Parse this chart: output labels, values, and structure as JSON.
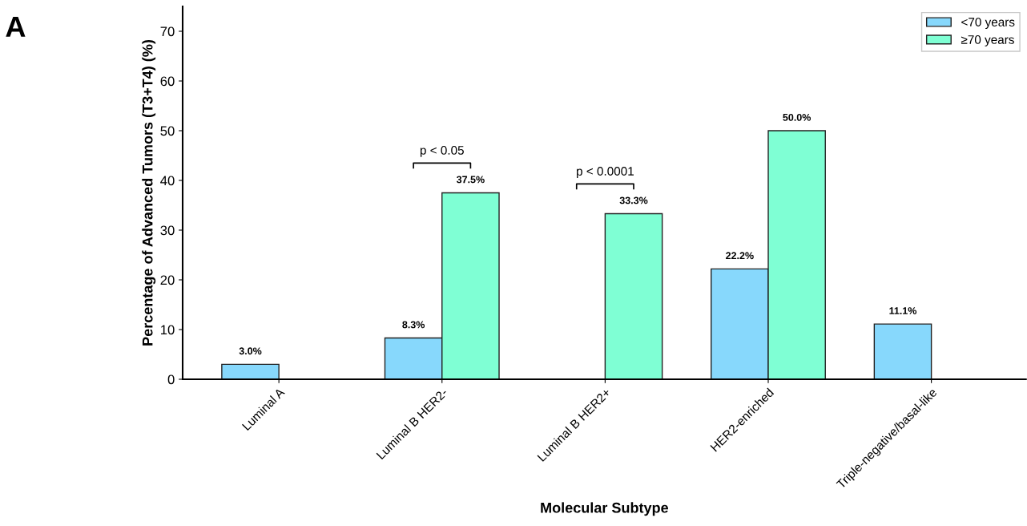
{
  "chart_data": {
    "type": "bar",
    "xlabel": "Molecular Subtype",
    "ylabel": "Percentage of Advanced Tumors (T3+T4) (%)",
    "categories": [
      "Luminal A",
      "Luminal B HER2-",
      "Luminal B HER2+",
      "HER2-enriched",
      "Triple-negative/basal-like"
    ],
    "series": [
      {
        "name": "<70 years",
        "color": "#87d8fc",
        "values": [
          3.0,
          8.3,
          null,
          22.2,
          11.1
        ],
        "value_labels": [
          "3.0%",
          "8.3%",
          null,
          "22.2%",
          "11.1%"
        ]
      },
      {
        "name": "≥70 years",
        "color": "#7fffd4",
        "values": [
          null,
          37.5,
          33.3,
          50.0,
          null
        ],
        "value_labels": [
          null,
          "37.5%",
          "33.3%",
          "50.0%",
          null
        ]
      }
    ],
    "ylim": [
      0,
      75
    ],
    "yticks": [
      0,
      10,
      20,
      30,
      40,
      50,
      60,
      70
    ],
    "grid": false,
    "legend": "top right",
    "annotations": [
      "A",
      "p < 0.05",
      "p < 0.0001"
    ]
  }
}
